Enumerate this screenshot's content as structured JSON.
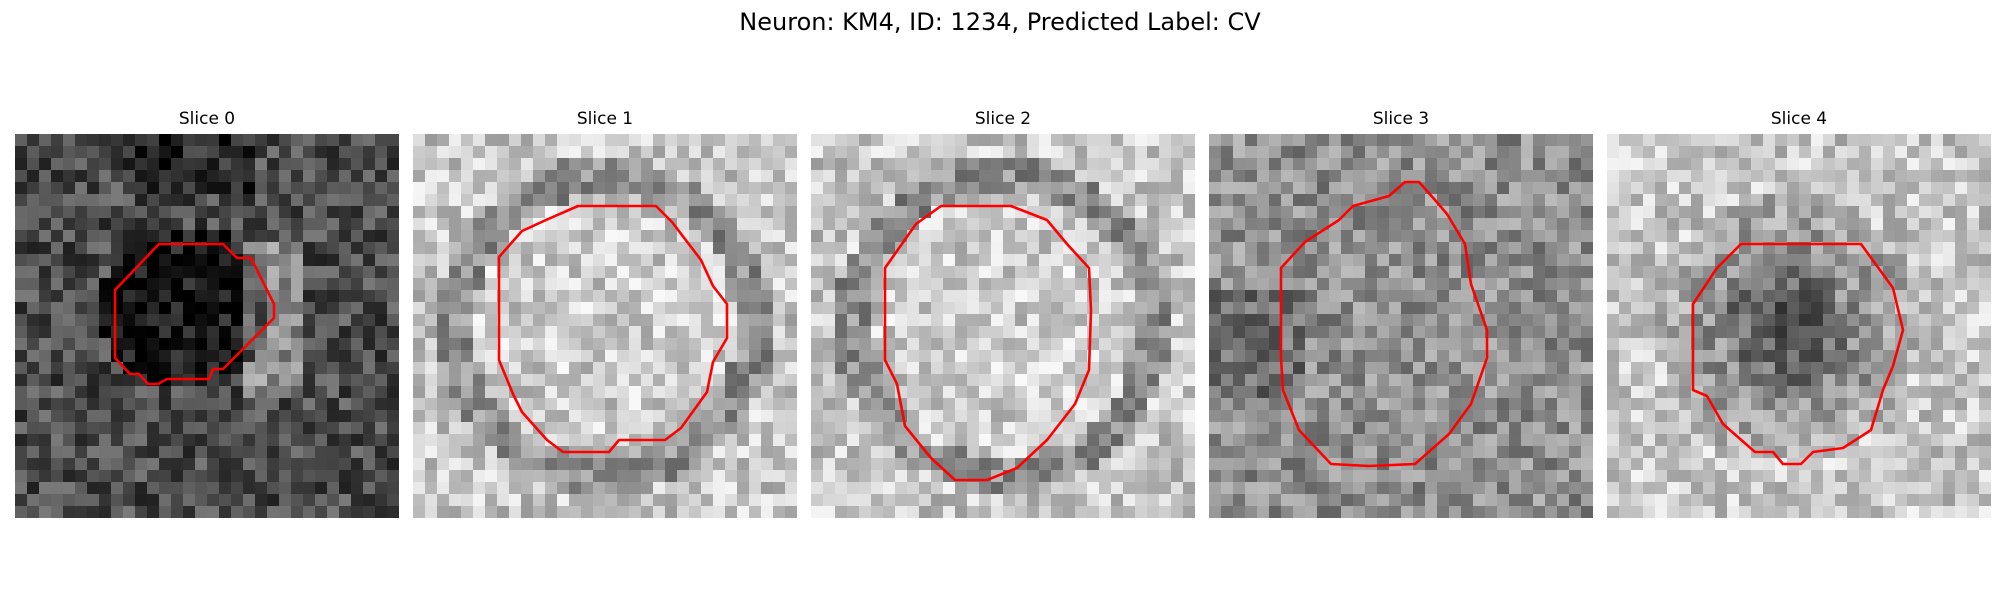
{
  "figure": {
    "title": "Neuron: KM4, ID: 1234, Predicted Label: CV"
  },
  "slices": [
    {
      "label": "Slice 0",
      "image": "grayscale-microscopy-patch",
      "background": "dark",
      "content": "dark-cell-body",
      "contour_color": "#ff0000",
      "contour_icon": "polygon-outline"
    },
    {
      "label": "Slice 1",
      "image": "grayscale-microscopy-patch",
      "background": "light",
      "content": "dark-ring-light-center",
      "contour_color": "#ff0000",
      "contour_icon": "polygon-outline"
    },
    {
      "label": "Slice 2",
      "image": "grayscale-microscopy-patch",
      "background": "light",
      "content": "dark-ring-light-center",
      "contour_color": "#ff0000",
      "contour_icon": "polygon-outline"
    },
    {
      "label": "Slice 3",
      "image": "grayscale-microscopy-patch",
      "background": "medium",
      "content": "noisy-texture",
      "contour_color": "#ff0000",
      "contour_icon": "polygon-outline"
    },
    {
      "label": "Slice 4",
      "image": "grayscale-microscopy-patch",
      "background": "light",
      "content": "dark-cell-body",
      "contour_color": "#ff0000",
      "contour_icon": "polygon-outline"
    }
  ]
}
